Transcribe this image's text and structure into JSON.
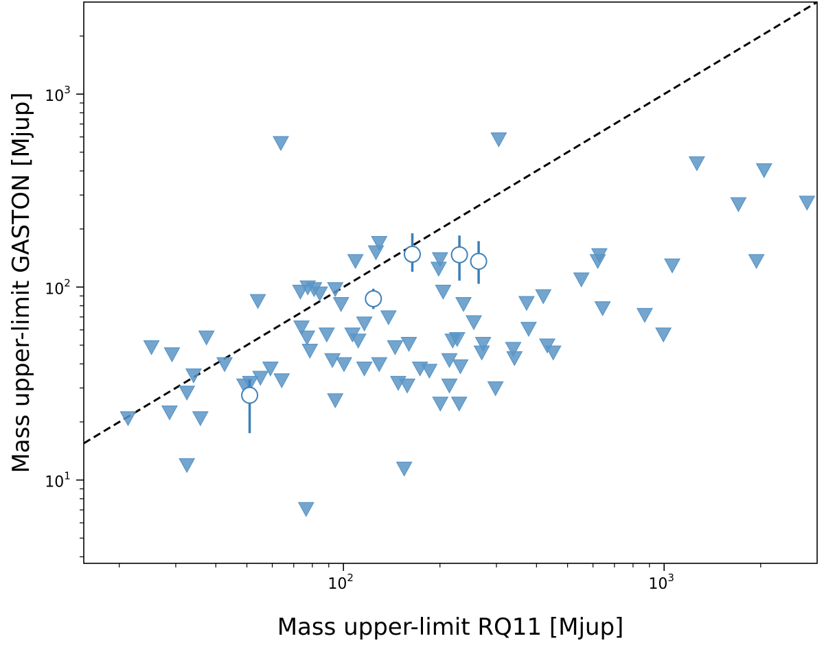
{
  "chart_data": {
    "type": "scatter",
    "xlabel": "Mass upper-limit RQ11 [Mjup]",
    "ylabel": "Mass upper-limit GASTON [Mjup]",
    "xscale": "log",
    "yscale": "log",
    "xlim": [
      15.5,
      3000
    ],
    "ylim": [
      3.7,
      3000
    ],
    "x_ticks": [
      {
        "value": 100,
        "base": "10",
        "exp": "2"
      },
      {
        "value": 1000,
        "base": "10",
        "exp": "3"
      }
    ],
    "y_ticks": [
      {
        "value": 10,
        "base": "10",
        "exp": "1"
      },
      {
        "value": 100,
        "base": "10",
        "exp": "2"
      },
      {
        "value": 1000,
        "base": "10",
        "exp": "3"
      }
    ],
    "grid": false,
    "reference_line": {
      "style": "dashed",
      "color": "#000000",
      "x": [
        15.5,
        3000
      ],
      "y": [
        15.5,
        3000
      ]
    },
    "series": [
      {
        "marker": "triangle-down",
        "color": "#5b95c6",
        "points": [
          [
            21.3,
            21
          ],
          [
            25.2,
            49
          ],
          [
            28.7,
            22.5
          ],
          [
            29.2,
            45
          ],
          [
            32.5,
            28.5
          ],
          [
            32.5,
            12
          ],
          [
            34.1,
            35
          ],
          [
            35.8,
            21
          ],
          [
            37.4,
            55
          ],
          [
            42.6,
            40
          ],
          [
            49.1,
            31
          ],
          [
            51.2,
            32
          ],
          [
            55.1,
            34
          ],
          [
            59.2,
            38
          ],
          [
            64.2,
            33
          ],
          [
            54.1,
            85
          ],
          [
            63.8,
            560
          ],
          [
            74.0,
            62
          ],
          [
            77.0,
            55
          ],
          [
            78.6,
            47
          ],
          [
            77.4,
            100
          ],
          [
            81.0,
            98
          ],
          [
            84.4,
            93
          ],
          [
            73.4,
            95
          ],
          [
            76.5,
            7.1
          ],
          [
            88.7,
            57
          ],
          [
            92.4,
            42
          ],
          [
            94.3,
            26
          ],
          [
            94.3,
            98
          ],
          [
            98.3,
            82
          ],
          [
            100.4,
            40
          ],
          [
            106.7,
            57
          ],
          [
            109.0,
            137
          ],
          [
            111.2,
            53
          ],
          [
            116.2,
            38
          ],
          [
            116.2,
            65
          ],
          [
            126.3,
            152
          ],
          [
            129.3,
            170
          ],
          [
            129.3,
            40
          ],
          [
            138.2,
            70
          ],
          [
            144.9,
            49
          ],
          [
            148.2,
            32
          ],
          [
            154.7,
            11.5
          ],
          [
            158.1,
            31
          ],
          [
            160.0,
            51
          ],
          [
            173.3,
            38
          ],
          [
            185.3,
            37
          ],
          [
            198.1,
            125
          ],
          [
            200.1,
            140
          ],
          [
            204.6,
            95
          ],
          [
            200.5,
            25
          ],
          [
            214.0,
            42
          ],
          [
            214.0,
            31
          ],
          [
            219.1,
            53
          ],
          [
            226.3,
            54
          ],
          [
            229.6,
            25
          ],
          [
            231.6,
            39
          ],
          [
            236.8,
            82
          ],
          [
            255.0,
            66
          ],
          [
            270.0,
            46
          ],
          [
            272.6,
            51
          ],
          [
            298.0,
            30
          ],
          [
            305.0,
            585
          ],
          [
            338.5,
            48
          ],
          [
            341.5,
            43
          ],
          [
            372.5,
            83
          ],
          [
            378.0,
            61
          ],
          [
            420.0,
            90
          ],
          [
            432.0,
            50
          ],
          [
            451.0,
            46
          ],
          [
            552.0,
            110
          ],
          [
            621.0,
            137
          ],
          [
            628.0,
            147
          ],
          [
            643.0,
            78
          ],
          [
            870.0,
            72
          ],
          [
            995.0,
            57
          ],
          [
            1060.0,
            130
          ],
          [
            1265.0,
            440
          ],
          [
            1705.0,
            270
          ],
          [
            1940.0,
            137
          ],
          [
            2050.0,
            405
          ],
          [
            2790.0,
            275
          ]
        ]
      },
      {
        "marker": "circle-open",
        "color": "#3d7fb8",
        "points": [
          {
            "x": 51.0,
            "y": 27.5,
            "yerr_low": 17.5,
            "yerr_high": 33
          },
          {
            "x": 124.0,
            "y": 87,
            "yerr_low": 77,
            "yerr_high": 98
          },
          {
            "x": 164.0,
            "y": 148,
            "yerr_low": 120,
            "yerr_high": 190
          },
          {
            "x": 230.0,
            "y": 147,
            "yerr_low": 108,
            "yerr_high": 185
          },
          {
            "x": 264.0,
            "y": 136,
            "yerr_low": 104,
            "yerr_high": 173
          }
        ]
      }
    ]
  }
}
